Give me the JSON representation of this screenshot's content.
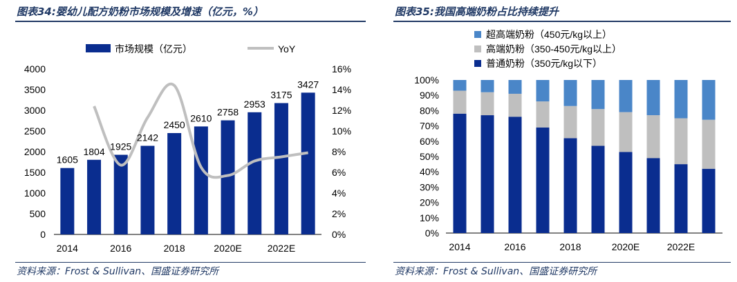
{
  "charts_meta": [
    {
      "title": "图表34:婴幼儿配方奶粉市场规模及增速（亿元，%）",
      "source": "资料来源：Frost & Sullivan、国盛证券研究所"
    },
    {
      "title": "图表35:我国高端奶粉占比持续提升",
      "source": "资料来源：Frost & Sullivan、国盛证券研究所"
    }
  ],
  "colors": {
    "navy": "#0a2d8f",
    "gray": "#bfbfbf",
    "blue": "#4a86c8",
    "title": "#1f3864"
  },
  "chart_data": [
    {
      "type": "bar",
      "title": "图表34:婴幼儿配方奶粉市场规模及增速（亿元，%）",
      "categories": [
        "2014",
        "2015",
        "2016",
        "2017",
        "2018",
        "2019",
        "2020E",
        "2021E",
        "2022E",
        "2023E"
      ],
      "x_tick_labels": [
        "2014",
        "",
        "2016",
        "",
        "2018",
        "",
        "2020E",
        "",
        "2022E",
        ""
      ],
      "series": [
        {
          "name": "市场规模（亿元）",
          "type": "bar",
          "axis": "left",
          "values": [
            1605,
            1804,
            1925,
            2142,
            2450,
            2610,
            2758,
            2953,
            3175,
            3427
          ]
        },
        {
          "name": "YoY",
          "type": "line",
          "axis": "right",
          "values": [
            null,
            12.4,
            6.7,
            11.3,
            14.4,
            6.5,
            5.7,
            7.1,
            7.5,
            7.9
          ]
        }
      ],
      "y_left": {
        "min": 0,
        "max": 4000,
        "step": 500
      },
      "y_right": {
        "min": 0,
        "max": 16,
        "step": 2,
        "unit": "%"
      },
      "legend": "top"
    },
    {
      "type": "bar",
      "stacked": true,
      "title": "图表35:我国高端奶粉占比持续提升",
      "categories": [
        "2014",
        "2015",
        "2016",
        "2017",
        "2018",
        "2019",
        "2020E",
        "2021E",
        "2022E",
        "2023E"
      ],
      "x_tick_labels": [
        "2014",
        "",
        "2016",
        "",
        "2018",
        "",
        "2020E",
        "",
        "2022E",
        ""
      ],
      "series": [
        {
          "name": "普通奶粉（350元/kg以下）",
          "values": [
            78,
            77,
            76,
            69,
            62,
            57,
            53,
            49,
            45,
            42
          ]
        },
        {
          "name": "高端奶粉（350-450元/kg以上）",
          "values": [
            15,
            15,
            15,
            17,
            21,
            24,
            26,
            28,
            30,
            32
          ]
        },
        {
          "name": "超高端奶粉（450元/kg以上）",
          "values": [
            7,
            8,
            9,
            14,
            17,
            19,
            21,
            23,
            25,
            26
          ]
        }
      ],
      "y": {
        "min": 0,
        "max": 100,
        "step": 10,
        "unit": "%"
      },
      "legend": "top-left"
    }
  ]
}
